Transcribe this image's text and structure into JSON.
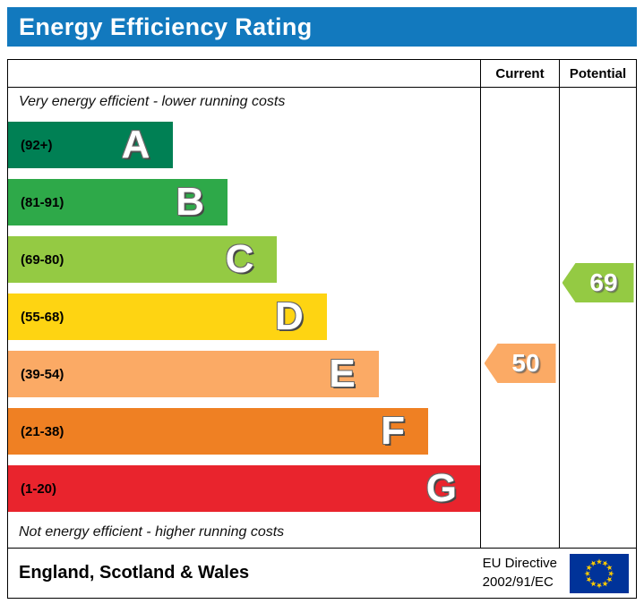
{
  "header": {
    "title": "Energy Efficiency Rating",
    "bg_color": "#1279be"
  },
  "table": {
    "columns": {
      "current": "Current",
      "potential": "Potential"
    },
    "top_note": "Very energy efficient - lower running costs",
    "bottom_note": "Not energy efficient - higher running costs"
  },
  "chart_data": {
    "type": "bar",
    "title": "Energy Efficiency Rating",
    "orientation": "horizontal",
    "bands": [
      {
        "letter": "A",
        "range": "(92+)",
        "min": 92,
        "max": 100,
        "color": "#008054",
        "width_pct": 35
      },
      {
        "letter": "B",
        "range": "(81-91)",
        "min": 81,
        "max": 91,
        "color": "#2ea949",
        "width_pct": 46.5
      },
      {
        "letter": "C",
        "range": "(69-80)",
        "min": 69,
        "max": 80,
        "color": "#94ca43",
        "width_pct": 57
      },
      {
        "letter": "D",
        "range": "(55-68)",
        "min": 55,
        "max": 68,
        "color": "#fed412",
        "width_pct": 67.5
      },
      {
        "letter": "E",
        "range": "(39-54)",
        "min": 39,
        "max": 54,
        "color": "#fbaa65",
        "width_pct": 78.5
      },
      {
        "letter": "F",
        "range": "(21-38)",
        "min": 21,
        "max": 38,
        "color": "#ef8023",
        "width_pct": 89
      },
      {
        "letter": "G",
        "range": "(1-20)",
        "min": 1,
        "max": 20,
        "color": "#e9242d",
        "width_pct": 100
      }
    ],
    "current": {
      "value": 50,
      "band": "E",
      "color": "#fbaa65"
    },
    "potential": {
      "value": 69,
      "band": "C",
      "color": "#94ca43"
    }
  },
  "footer": {
    "region": "England, Scotland & Wales",
    "directive_line1": "EU Directive",
    "directive_line2": "2002/91/EC",
    "eu_flag": {
      "bg": "#003399",
      "star_color": "#ffcc00"
    }
  }
}
